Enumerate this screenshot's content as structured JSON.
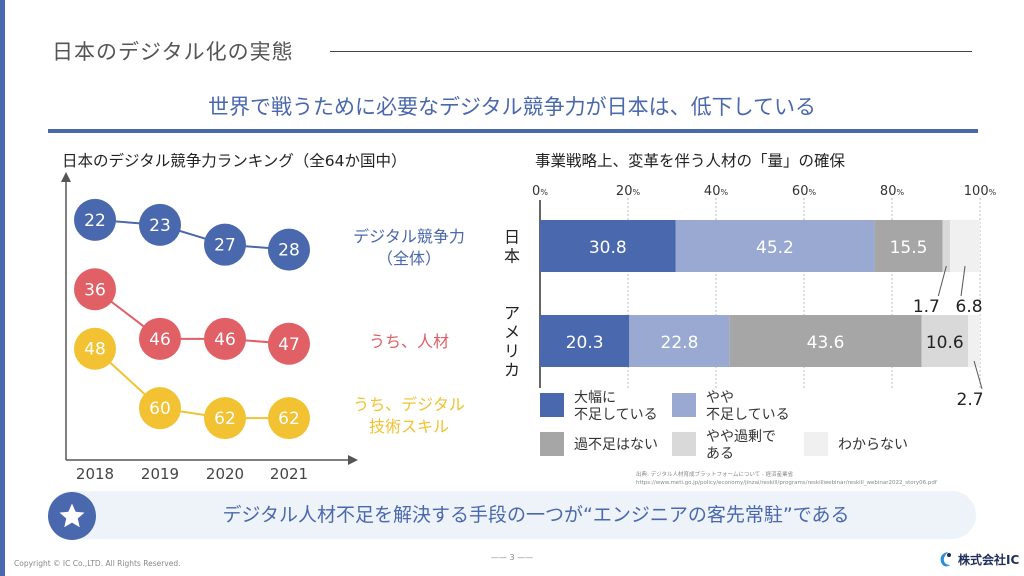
{
  "page": {
    "title": "日本のデジタル化の実態",
    "subtitle": "世界で戦うために必要なデジタル競争力が日本は、低下している",
    "banner": "デジタル人材不足を解決する手段の一つが“エンジニアの客先常駐”である",
    "source_line1": "出典: デジタル人材育成プラットフォームについて - 経済産業省",
    "source_line2": "https://www.meti.go.jp/policy/economy/jinzai/reskill/programs/reskillwebinar/reskill_webinar2022_story06.pdf",
    "copyright": "Copyright © IC Co.,LTD. All Rights Reserved.",
    "page_number": "—— 3 ——",
    "logo_text": "株式会社IC",
    "logo_icon": "ic-logo-icon",
    "banner_icon": "star-icon",
    "colors": {
      "accent": "#4a68ae",
      "blue": "#4a68ae",
      "red": "#e06066",
      "yellow": "#f2c232"
    }
  },
  "chart_data": [
    {
      "type": "line",
      "title": "日本のデジタル競争力ランキング（全64か国中）",
      "x": [
        "2018",
        "2019",
        "2020",
        "2021"
      ],
      "ylim": [
        20,
        64
      ],
      "inverted_y": true,
      "series": [
        {
          "name": "デジタル競争力（全体）",
          "values": [
            22,
            23,
            27,
            28
          ],
          "color": "#4a68ae",
          "label_lines": [
            "デジタル競争力",
            "（全体）"
          ]
        },
        {
          "name": "うち、人材",
          "values": [
            36,
            46,
            46,
            47
          ],
          "color": "#e06066",
          "label_lines": [
            "うち、人材"
          ]
        },
        {
          "name": "うち、デジタル技術スキル",
          "values": [
            48,
            60,
            62,
            62
          ],
          "color": "#f2c232",
          "label_lines": [
            "うち、デジタル",
            "技術スキル"
          ]
        }
      ]
    },
    {
      "type": "bar",
      "orientation": "horizontal",
      "stacked": true,
      "title": "事業戦略上、変革を伴う人材の「量」の確保",
      "categories": [
        "日本",
        "アメリカ"
      ],
      "xlim": [
        0,
        100
      ],
      "xticks": [
        {
          "value": 0,
          "label": "0",
          "unit": "%"
        },
        {
          "value": 20,
          "label": "20",
          "unit": "%"
        },
        {
          "value": 40,
          "label": "40",
          "unit": "%"
        },
        {
          "value": 60,
          "label": "60",
          "unit": "%"
        },
        {
          "value": 80,
          "label": "80",
          "unit": "%"
        },
        {
          "value": 100,
          "label": "100",
          "unit": "%"
        }
      ],
      "series": [
        {
          "name": "大幅に不足している",
          "legend_lines": [
            "大幅に",
            "不足している"
          ],
          "color": "#4a68ae",
          "values": [
            30.8,
            20.3
          ]
        },
        {
          "name": "やや不足している",
          "legend_lines": [
            "やや",
            "不足している"
          ],
          "color": "#99a9d2",
          "values": [
            45.2,
            22.8
          ]
        },
        {
          "name": "過不足はない",
          "legend_lines": [
            "過不足はない"
          ],
          "color": "#a6a6a6",
          "values": [
            15.5,
            43.6
          ]
        },
        {
          "name": "やや過剰である",
          "legend_lines": [
            "やや過剰で",
            "ある"
          ],
          "color": "#d9d9d9",
          "values": [
            1.7,
            10.6
          ]
        },
        {
          "name": "わからない",
          "legend_lines": [
            "わからない"
          ],
          "color": "#f0f0f0",
          "values": [
            6.8,
            2.7
          ]
        }
      ],
      "data_labels": [
        [
          "30.8",
          "45.2",
          "15.5",
          "1.7",
          "6.8"
        ],
        [
          "20.3",
          "22.8",
          "43.6",
          "10.6",
          "2.7"
        ]
      ]
    }
  ]
}
